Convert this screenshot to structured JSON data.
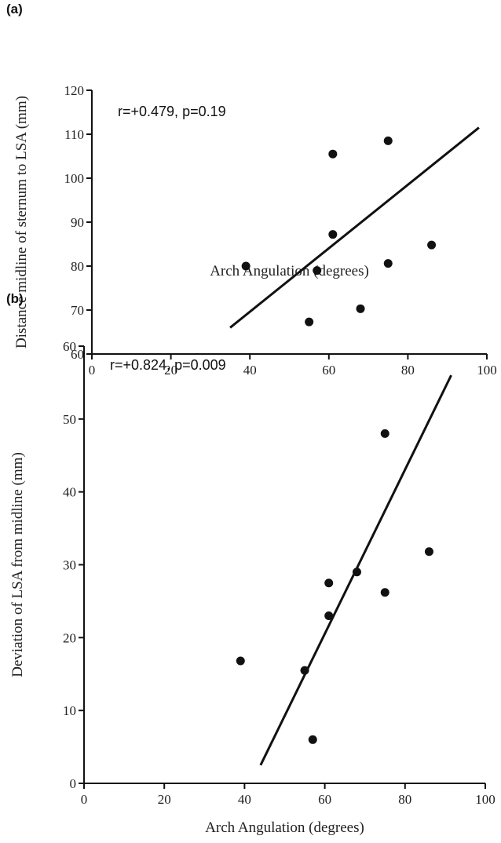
{
  "chart_data": [
    {
      "type": "scatter",
      "panel_label": "(a)",
      "annotation": "r=+0.479, p=0.19",
      "xlabel": "Arch Angulation (degrees)",
      "ylabel": "Distance midline of sternum to LSA (mm)",
      "xlim": [
        0,
        100
      ],
      "ylim": [
        60,
        120
      ],
      "xticks": [
        0,
        20,
        40,
        60,
        80,
        100
      ],
      "yticks": [
        60,
        70,
        80,
        90,
        100,
        110,
        120
      ],
      "points": [
        {
          "x": 39,
          "y": 80
        },
        {
          "x": 55,
          "y": 67.3
        },
        {
          "x": 57,
          "y": 79
        },
        {
          "x": 61,
          "y": 87.2
        },
        {
          "x": 61,
          "y": 105.5
        },
        {
          "x": 68,
          "y": 70.3
        },
        {
          "x": 75,
          "y": 80.6
        },
        {
          "x": 75,
          "y": 108.5
        },
        {
          "x": 86,
          "y": 84.8
        }
      ],
      "trendline": [
        {
          "x": 35,
          "y": 66
        },
        {
          "x": 98,
          "y": 111.5
        }
      ],
      "grid": false
    },
    {
      "type": "scatter",
      "panel_label": "(b)",
      "annotation": "r=+0.824, p=0.009",
      "xlabel": "Arch Angulation (degrees)",
      "ylabel": "Deviation of LSA from midline (mm)",
      "xlim": [
        0,
        100
      ],
      "ylim": [
        0,
        60
      ],
      "xticks": [
        0,
        20,
        40,
        60,
        80,
        100
      ],
      "yticks": [
        0,
        10,
        20,
        30,
        40,
        50,
        60
      ],
      "points": [
        {
          "x": 39,
          "y": 16.8
        },
        {
          "x": 55,
          "y": 15.5
        },
        {
          "x": 57,
          "y": 6
        },
        {
          "x": 61,
          "y": 23
        },
        {
          "x": 61,
          "y": 27.5
        },
        {
          "x": 68,
          "y": 29
        },
        {
          "x": 75,
          "y": 26.2
        },
        {
          "x": 75,
          "y": 48
        },
        {
          "x": 86,
          "y": 31.8
        }
      ],
      "trendline": [
        {
          "x": 44,
          "y": 2.5
        },
        {
          "x": 91.5,
          "y": 56
        }
      ],
      "grid": false
    }
  ]
}
